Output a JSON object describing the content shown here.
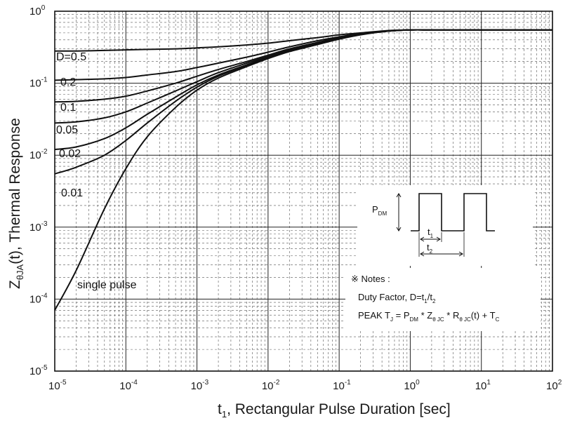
{
  "chart_data": {
    "type": "line",
    "title": "",
    "xlabel": {
      "main": "t",
      "sub": "1",
      "rest": ", Rectangular Pulse Duration [sec]"
    },
    "ylabel": {
      "z": "Z",
      "theta": "θ",
      "ja": "JA",
      "rest": "(t), Thermal Response"
    },
    "x_scale": "log",
    "y_scale": "log",
    "xlim": [
      1e-05,
      100
    ],
    "ylim": [
      1e-05,
      1
    ],
    "grid": true,
    "x_ticks": [
      {
        "value": 1e-05,
        "base": "10",
        "exp": "-5"
      },
      {
        "value": 0.0001,
        "base": "10",
        "exp": "-4"
      },
      {
        "value": 0.001,
        "base": "10",
        "exp": "-3"
      },
      {
        "value": 0.01,
        "base": "10",
        "exp": "-2"
      },
      {
        "value": 0.1,
        "base": "10",
        "exp": "-1"
      },
      {
        "value": 1,
        "base": "10",
        "exp": "0"
      },
      {
        "value": 10,
        "base": "10",
        "exp": "1"
      },
      {
        "value": 100,
        "base": "10",
        "exp": "2"
      }
    ],
    "y_ticks": [
      {
        "value": 1,
        "base": "10",
        "exp": "0"
      },
      {
        "value": 0.1,
        "base": "10",
        "exp": "-1"
      },
      {
        "value": 0.01,
        "base": "10",
        "exp": "-2"
      },
      {
        "value": 0.001,
        "base": "10",
        "exp": "-3"
      },
      {
        "value": 0.0001,
        "base": "10",
        "exp": "-4"
      },
      {
        "value": 1e-05,
        "base": "10",
        "exp": "-5"
      }
    ],
    "x": [
      1e-05,
      2e-05,
      5e-05,
      0.0001,
      0.0002,
      0.0005,
      0.001,
      0.002,
      0.005,
      0.01,
      0.02,
      0.05,
      0.1,
      0.2,
      0.5,
      1,
      2,
      5,
      10,
      20,
      50,
      100
    ],
    "series": [
      {
        "name": "D=0.5",
        "values": [
          0.28,
          0.28,
          0.285,
          0.29,
          0.295,
          0.3,
          0.31,
          0.32,
          0.34,
          0.36,
          0.39,
          0.43,
          0.47,
          0.5,
          0.54,
          0.55,
          0.55,
          0.55,
          0.55,
          0.55,
          0.55,
          0.55
        ]
      },
      {
        "name": "0.2",
        "values": [
          0.11,
          0.112,
          0.115,
          0.12,
          0.13,
          0.145,
          0.165,
          0.19,
          0.23,
          0.27,
          0.32,
          0.39,
          0.44,
          0.49,
          0.53,
          0.55,
          0.55,
          0.55,
          0.55,
          0.55,
          0.55,
          0.55
        ]
      },
      {
        "name": "0.1",
        "values": [
          0.055,
          0.056,
          0.06,
          0.066,
          0.078,
          0.1,
          0.125,
          0.155,
          0.2,
          0.245,
          0.3,
          0.37,
          0.43,
          0.48,
          0.53,
          0.55,
          0.55,
          0.55,
          0.55,
          0.55,
          0.55,
          0.55
        ]
      },
      {
        "name": "0.05",
        "values": [
          0.028,
          0.029,
          0.033,
          0.04,
          0.053,
          0.078,
          0.105,
          0.14,
          0.19,
          0.235,
          0.29,
          0.36,
          0.42,
          0.48,
          0.53,
          0.55,
          0.55,
          0.55,
          0.55,
          0.55,
          0.55,
          0.55
        ]
      },
      {
        "name": "0.02",
        "values": [
          0.012,
          0.013,
          0.017,
          0.024,
          0.037,
          0.064,
          0.095,
          0.13,
          0.18,
          0.23,
          0.285,
          0.355,
          0.42,
          0.48,
          0.53,
          0.55,
          0.55,
          0.55,
          0.55,
          0.55,
          0.55,
          0.55
        ]
      },
      {
        "name": "0.01",
        "values": [
          0.0055,
          0.0068,
          0.01,
          0.016,
          0.028,
          0.056,
          0.088,
          0.125,
          0.175,
          0.225,
          0.28,
          0.35,
          0.415,
          0.475,
          0.53,
          0.55,
          0.55,
          0.55,
          0.55,
          0.55,
          0.55,
          0.55
        ]
      },
      {
        "name": "single pulse",
        "values": [
          7e-05,
          0.00025,
          0.0018,
          0.0065,
          0.018,
          0.046,
          0.08,
          0.118,
          0.17,
          0.22,
          0.275,
          0.345,
          0.41,
          0.47,
          0.53,
          0.55,
          0.55,
          0.55,
          0.55,
          0.55,
          0.55,
          0.55
        ]
      }
    ],
    "inset": {
      "pdm": {
        "main": "P",
        "sub": "DM"
      },
      "t1": {
        "main": "t",
        "sub": "1"
      },
      "t2": {
        "main": "t",
        "sub": "2"
      }
    },
    "notes": {
      "heading": "※ Notes :",
      "duty": {
        "text": "Duty Factor, D=t",
        "sub1": "1",
        "slash": "/t",
        "sub2": "2"
      },
      "peak": {
        "p1": "PEAK T",
        "s1": "J",
        "p2": " = P",
        "s2": "DM",
        "p3": " * Z",
        "s3": "θ JC",
        "p4": " * R",
        "s4": "θ JC",
        "p5": "(t) + T",
        "s5": "C"
      }
    }
  }
}
